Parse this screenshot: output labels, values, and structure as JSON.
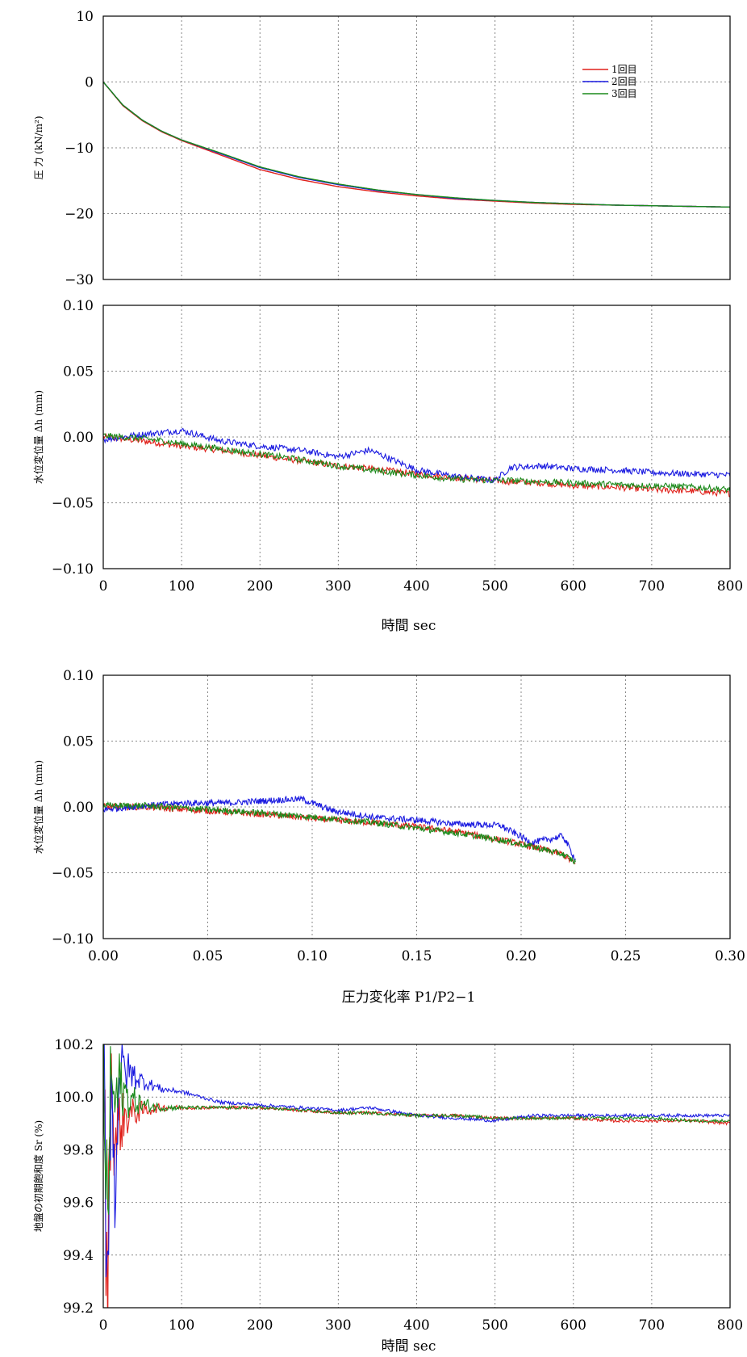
{
  "colors": {
    "run1": "#e0201a",
    "run2": "#1a1ae0",
    "run3": "#1a8a1a"
  },
  "chart_data": [
    {
      "id": "pressure",
      "type": "line",
      "xlabel": "",
      "ylabel": "圧 力 (kN/m²)",
      "xlim": [
        0,
        800
      ],
      "ylim": [
        -30,
        10
      ],
      "xticks": [
        0,
        100,
        200,
        300,
        400,
        500,
        600,
        700,
        800
      ],
      "yticks": [
        10,
        0,
        -10,
        -20,
        -30
      ],
      "ytick_labels": [
        "10",
        "0",
        "−10",
        "−20",
        "−30"
      ],
      "show_xtick_labels": false,
      "grid": true,
      "legend": [
        "1回目",
        "2回目",
        "3回目"
      ],
      "legend_position": "top-right",
      "x": [
        0,
        25,
        50,
        75,
        100,
        150,
        200,
        250,
        300,
        350,
        400,
        450,
        500,
        550,
        600,
        650,
        700,
        750,
        800
      ],
      "series": [
        {
          "name": "1回目",
          "y": [
            0,
            -3.6,
            -5.9,
            -7.6,
            -8.9,
            -11.1,
            -13.3,
            -14.8,
            -15.9,
            -16.7,
            -17.3,
            -17.8,
            -18.1,
            -18.4,
            -18.6,
            -18.7,
            -18.8,
            -18.9,
            -19.0
          ]
        },
        {
          "name": "2回目",
          "y": [
            0,
            -3.5,
            -5.8,
            -7.5,
            -8.8,
            -10.9,
            -13.0,
            -14.5,
            -15.6,
            -16.5,
            -17.1,
            -17.7,
            -18.0,
            -18.3,
            -18.5,
            -18.7,
            -18.8,
            -18.9,
            -19.0
          ]
        },
        {
          "name": "3回目",
          "y": [
            0,
            -3.5,
            -5.8,
            -7.5,
            -8.8,
            -10.8,
            -12.9,
            -14.4,
            -15.5,
            -16.4,
            -17.1,
            -17.6,
            -18.0,
            -18.3,
            -18.5,
            -18.7,
            -18.8,
            -18.9,
            -19.0
          ]
        }
      ]
    },
    {
      "id": "dh_time",
      "type": "line",
      "xlabel": "時間 sec",
      "ylabel": "水位変位量 Δh (mm)",
      "xlim": [
        0,
        800
      ],
      "ylim": [
        -0.1,
        0.1
      ],
      "xticks": [
        0,
        100,
        200,
        300,
        400,
        500,
        600,
        700,
        800
      ],
      "xtick_labels": [
        "0",
        "100",
        "200",
        "300",
        "400",
        "500",
        "600",
        "700",
        "800"
      ],
      "yticks": [
        0.1,
        0.05,
        0.0,
        -0.05,
        -0.1
      ],
      "ytick_labels": [
        "0.10",
        "0.05",
        "0.00",
        "−0.05",
        "−0.10"
      ],
      "grid": true,
      "x": [
        0,
        50,
        100,
        150,
        200,
        250,
        300,
        340,
        400,
        450,
        500,
        520,
        560,
        600,
        650,
        700,
        750,
        800
      ],
      "series": [
        {
          "name": "1回目",
          "y": [
            0.0,
            -0.003,
            -0.007,
            -0.01,
            -0.014,
            -0.018,
            -0.022,
            -0.024,
            -0.028,
            -0.031,
            -0.033,
            -0.034,
            -0.035,
            -0.037,
            -0.038,
            -0.04,
            -0.041,
            -0.043
          ]
        },
        {
          "name": "2回目",
          "y": [
            -0.002,
            0.002,
            0.005,
            -0.003,
            -0.007,
            -0.01,
            -0.015,
            -0.01,
            -0.025,
            -0.03,
            -0.033,
            -0.023,
            -0.022,
            -0.024,
            -0.025,
            -0.027,
            -0.028,
            -0.029
          ]
        },
        {
          "name": "3回目",
          "y": [
            0.001,
            -0.001,
            -0.005,
            -0.009,
            -0.013,
            -0.017,
            -0.022,
            -0.025,
            -0.029,
            -0.032,
            -0.033,
            -0.033,
            -0.034,
            -0.035,
            -0.036,
            -0.037,
            -0.038,
            -0.04
          ]
        }
      ]
    },
    {
      "id": "dh_ratio",
      "type": "line",
      "xlabel": "圧力変化率 P1/P2−1",
      "ylabel": "水位変位量 Δh (mm)",
      "xlim": [
        0,
        0.3
      ],
      "ylim": [
        -0.1,
        0.1
      ],
      "xticks": [
        0.0,
        0.05,
        0.1,
        0.15,
        0.2,
        0.25,
        0.3
      ],
      "xtick_labels": [
        "0.00",
        "0.05",
        "0.10",
        "0.15",
        "0.20",
        "0.25",
        "0.30"
      ],
      "yticks": [
        0.1,
        0.05,
        0.0,
        -0.05,
        -0.1
      ],
      "ytick_labels": [
        "0.10",
        "0.05",
        "0.00",
        "−0.05",
        "−0.10"
      ],
      "grid": true,
      "x": [
        0.0,
        0.02,
        0.04,
        0.06,
        0.08,
        0.095,
        0.11,
        0.13,
        0.15,
        0.17,
        0.19,
        0.205,
        0.215,
        0.22,
        0.226
      ],
      "series": [
        {
          "name": "1回目",
          "y": [
            0.0,
            0.0,
            -0.002,
            -0.004,
            -0.006,
            -0.008,
            -0.01,
            -0.012,
            -0.015,
            -0.019,
            -0.025,
            -0.03,
            -0.034,
            -0.036,
            -0.044
          ]
        },
        {
          "name": "2回目",
          "y": [
            -0.002,
            0.001,
            0.003,
            0.003,
            0.005,
            0.006,
            -0.003,
            -0.008,
            -0.01,
            -0.013,
            -0.014,
            -0.027,
            -0.024,
            -0.022,
            -0.04
          ]
        },
        {
          "name": "3回目",
          "y": [
            0.001,
            0.001,
            -0.001,
            -0.003,
            -0.005,
            -0.007,
            -0.009,
            -0.012,
            -0.016,
            -0.02,
            -0.025,
            -0.03,
            -0.034,
            -0.036,
            -0.042
          ]
        }
      ]
    },
    {
      "id": "saturation",
      "type": "line",
      "xlabel": "時間 sec",
      "ylabel": "地盤の初期飽和度 Sr (%)",
      "xlim": [
        0,
        800
      ],
      "ylim": [
        99.2,
        100.2
      ],
      "xticks": [
        0,
        100,
        200,
        300,
        400,
        500,
        600,
        700,
        800
      ],
      "xtick_labels": [
        "0",
        "100",
        "200",
        "300",
        "400",
        "500",
        "600",
        "700",
        "800"
      ],
      "yticks": [
        100.2,
        100.0,
        99.8,
        99.6,
        99.4,
        99.2
      ],
      "ytick_labels": [
        "100.2",
        "100.0",
        "99.8",
        "99.6",
        "99.4",
        "99.2"
      ],
      "grid": true,
      "x": [
        0,
        5,
        10,
        15,
        20,
        30,
        50,
        75,
        100,
        150,
        200,
        250,
        300,
        340,
        400,
        450,
        500,
        550,
        600,
        650,
        700,
        750,
        800
      ],
      "series": [
        {
          "name": "1回目",
          "y": [
            100.2,
            99.2,
            100.1,
            99.8,
            99.9,
            99.93,
            99.95,
            99.96,
            99.96,
            99.96,
            99.96,
            99.95,
            99.94,
            99.94,
            99.93,
            99.93,
            99.92,
            99.92,
            99.92,
            99.91,
            99.91,
            99.91,
            99.9
          ]
        },
        {
          "name": "2回目",
          "y": [
            100.2,
            99.3,
            100.1,
            99.6,
            100.1,
            100.1,
            100.06,
            100.03,
            100.02,
            99.98,
            99.97,
            99.96,
            99.95,
            99.96,
            99.93,
            99.92,
            99.91,
            99.93,
            99.93,
            99.93,
            99.93,
            99.93,
            99.93
          ]
        },
        {
          "name": "3回目",
          "y": [
            100.2,
            99.5,
            100.1,
            99.95,
            100.05,
            100.0,
            99.97,
            99.96,
            99.96,
            99.96,
            99.96,
            99.95,
            99.94,
            99.94,
            99.93,
            99.93,
            99.92,
            99.92,
            99.92,
            99.92,
            99.92,
            99.91,
            99.91
          ]
        }
      ]
    }
  ]
}
